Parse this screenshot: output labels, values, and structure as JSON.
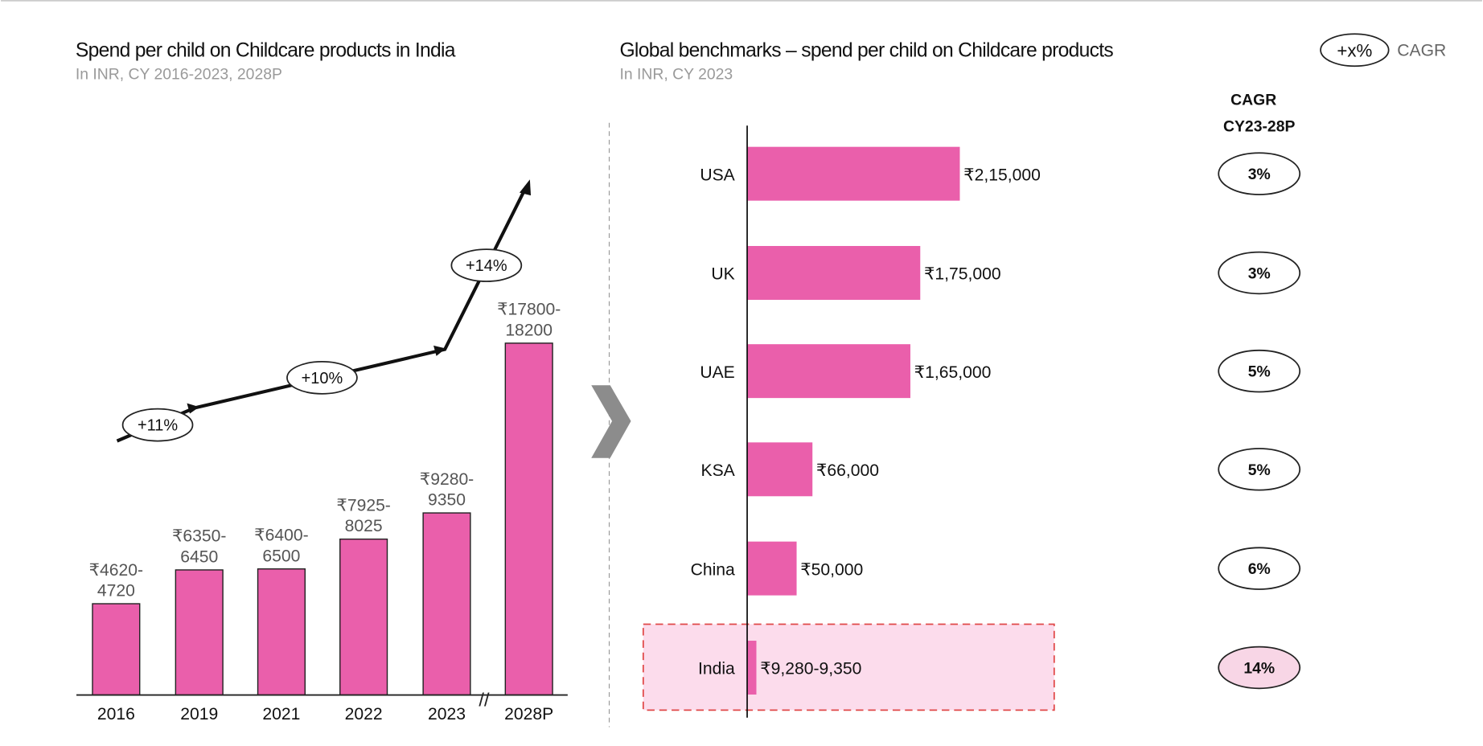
{
  "colors": {
    "bar": "#ea5fab",
    "highlight_fill": "#fcdcec",
    "highlight_border": "#e04848",
    "cagr_highlight": "#f8d6e6",
    "chevron": "#8c8c8c"
  },
  "legend": {
    "symbol": "+x%",
    "label": "CAGR"
  },
  "chart_data": [
    {
      "type": "bar",
      "title": "Spend per child on Childcare products in India",
      "subtitle": "In INR, CY 2016-2023, 2028P",
      "categories": [
        "2016",
        "2019",
        "2021",
        "2022",
        "2023",
        "2028P"
      ],
      "ranges": [
        [
          4620,
          4720
        ],
        [
          6350,
          6450
        ],
        [
          6400,
          6500
        ],
        [
          7925,
          8025
        ],
        [
          9280,
          9350
        ],
        [
          17800,
          18200
        ]
      ],
      "labels": [
        [
          "₹4620-",
          "4720"
        ],
        [
          "₹6350-",
          "6450"
        ],
        [
          "₹6400-",
          "6500"
        ],
        [
          "₹7925-",
          "8025"
        ],
        [
          "₹9280-",
          "9350"
        ],
        [
          "₹17800-",
          "18200"
        ]
      ],
      "axis_break": "//",
      "cagr_annotations": [
        "+11%",
        "+10%",
        "+14%"
      ],
      "ylim": [
        0,
        19000
      ]
    },
    {
      "type": "bar",
      "orientation": "horizontal",
      "title": "Global benchmarks – spend per child on Childcare products",
      "subtitle": "In INR, CY 2023",
      "categories": [
        "USA",
        "UK",
        "UAE",
        "KSA",
        "China",
        "India"
      ],
      "values": [
        215000,
        175000,
        165000,
        66000,
        50000,
        9315
      ],
      "labels": [
        "₹2,15,000",
        "₹1,75,000",
        "₹1,65,000",
        "₹66,000",
        "₹50,000",
        "₹9,280-9,350"
      ],
      "highlighted": "India",
      "cagr_header": [
        "CAGR",
        "CY23-28P"
      ],
      "cagr": [
        "3%",
        "3%",
        "5%",
        "5%",
        "6%",
        "14%"
      ]
    }
  ]
}
